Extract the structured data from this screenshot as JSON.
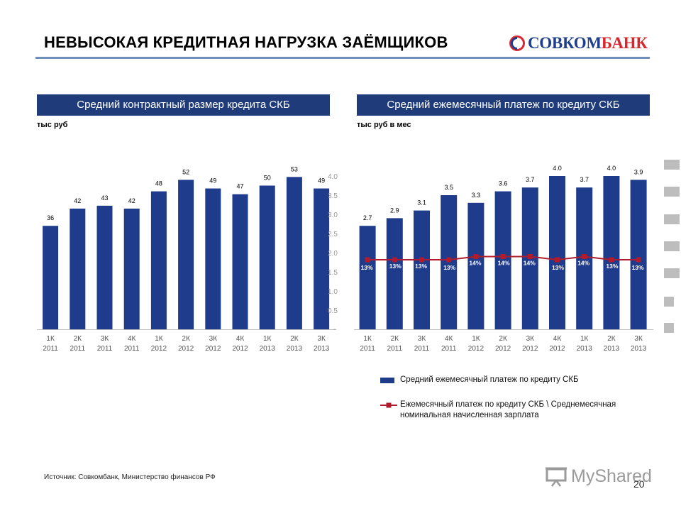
{
  "title": "НЕВЫСОКАЯ КРЕДИТНАЯ НАГРУЗКА ЗАЁМЩИКОВ",
  "logo": {
    "part1": "СОВКОМ",
    "part2": "БАНК"
  },
  "brand_colors": {
    "navy": "#1f3b7a",
    "red": "#d7282f",
    "bar": "#1f3b8c",
    "line": "#b01c2e"
  },
  "left_panel": {
    "header": "Средний контрактный размер кредита СКБ",
    "unit": "тыс руб"
  },
  "right_panel": {
    "header": "Средний ежемесячный платеж по кредиту СКБ",
    "unit": "тыс руб в мес"
  },
  "chart_data": [
    {
      "type": "bar",
      "title": "Средний контрактный размер кредита СКБ",
      "ylabel": "тыс руб",
      "categories": [
        [
          "1К",
          "2011"
        ],
        [
          "2К",
          "2011"
        ],
        [
          "3К",
          "2011"
        ],
        [
          "4К",
          "2011"
        ],
        [
          "1К",
          "2012"
        ],
        [
          "2К",
          "2012"
        ],
        [
          "3К",
          "2012"
        ],
        [
          "4К",
          "2012"
        ],
        [
          "1К",
          "2013"
        ],
        [
          "2К",
          "2013"
        ],
        [
          "3К",
          "2013"
        ]
      ],
      "values": [
        36,
        42,
        43,
        42,
        48,
        52,
        49,
        47,
        50,
        53,
        49
      ],
      "value_labels": [
        "36",
        "42",
        "43",
        "42",
        "48",
        "52",
        "49",
        "47",
        "50",
        "53",
        "49"
      ],
      "ylim": [
        0,
        60
      ],
      "right_axis": {
        "range": [
          0,
          4.0
        ],
        "ticks": [
          "0.5",
          "1.0",
          "1.5",
          "2.0",
          "2.5",
          "3.0",
          "3.5",
          "4.0"
        ],
        "zero_label": "-"
      }
    },
    {
      "type": "bar",
      "title": "Средний ежемесячный платеж по кредиту СКБ",
      "ylabel": "тыс руб в мес",
      "categories": [
        [
          "1К",
          "2011"
        ],
        [
          "2К",
          "2011"
        ],
        [
          "3К",
          "2011"
        ],
        [
          "4К",
          "2011"
        ],
        [
          "1К",
          "2012"
        ],
        [
          "2К",
          "2012"
        ],
        [
          "3К",
          "2012"
        ],
        [
          "4К",
          "2012"
        ],
        [
          "1К",
          "2013"
        ],
        [
          "2К",
          "2013"
        ],
        [
          "3К",
          "2013"
        ]
      ],
      "series": [
        {
          "name": "Средний ежемесячный платеж по кредиту СКБ",
          "type": "bar",
          "values": [
            2.7,
            2.9,
            3.1,
            3.5,
            3.3,
            3.6,
            3.7,
            4.0,
            3.7,
            4.0,
            3.9
          ],
          "labels": [
            "2.7",
            "2.9",
            "3.1",
            "3.5",
            "3.3",
            "3.6",
            "3.7",
            "4.0",
            "3.7",
            "4.0",
            "3.9"
          ]
        },
        {
          "name": "Ежемесячный платеж по кредиту СКБ \\ Среднемесячная номинальная начисленная зарплата",
          "type": "line",
          "values": [
            13,
            13,
            13,
            13,
            14,
            14,
            14,
            13,
            14,
            13,
            13
          ],
          "labels": [
            "13%",
            "13%",
            "13%",
            "13%",
            "14%",
            "14%",
            "14%",
            "13%",
            "14%",
            "13%",
            "13%"
          ]
        }
      ],
      "ylim": [
        0,
        4.3
      ],
      "line_ylim": [
        0,
        50
      ]
    }
  ],
  "legend": {
    "bar_label": "Средний ежемесячный платеж по кредиту СКБ",
    "line_label_1": "Ежемесячный платеж по кредиту СКБ \\ Среднемесячная",
    "line_label_2": "номинальная начисленная зарплата"
  },
  "source": "Источник: Совкомбанк, Министерство финансов РФ",
  "watermark": "MyShared",
  "page_number": "20"
}
